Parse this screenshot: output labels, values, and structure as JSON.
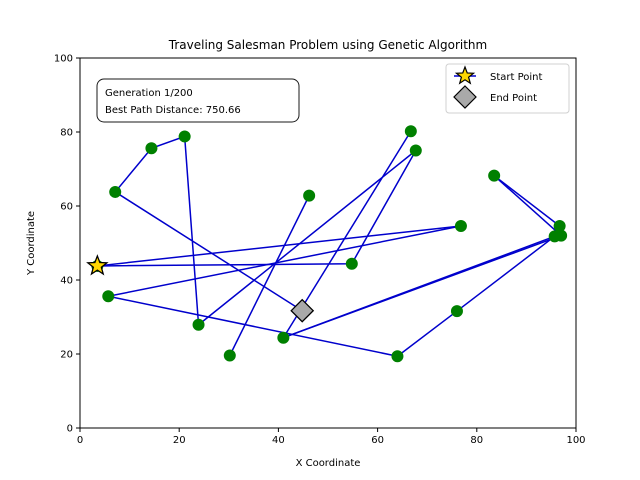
{
  "chart_data": {
    "type": "line",
    "title": "Traveling Salesman Problem using Genetic Algorithm",
    "xlabel": "X Coordinate",
    "ylabel": "Y Coordinate",
    "xlim": [
      0,
      100
    ],
    "ylim": [
      0,
      100
    ],
    "x_ticks": [
      "0",
      "20",
      "40",
      "60",
      "80",
      "100"
    ],
    "y_ticks": [
      "0",
      "20",
      "40",
      "60",
      "80",
      "100"
    ],
    "info_box": {
      "line1": "Generation 1/200",
      "line2": "Best Path Distance: 750.66"
    },
    "legend": {
      "placement": "top-right",
      "start_label": "Start Point",
      "end_label": "End Point"
    },
    "path": [
      [
        3.5,
        43.8
      ],
      [
        54.8,
        44.4
      ],
      [
        67.7,
        75.0
      ],
      [
        23.9,
        27.9
      ],
      [
        21.1,
        78.8
      ],
      [
        14.4,
        75.6
      ],
      [
        7.1,
        63.8
      ],
      [
        44.8,
        31.7
      ]
    ],
    "extra_edges": [
      [
        [
          3.5,
          43.8
        ],
        [
          76.8,
          54.6
        ]
      ],
      [
        [
          76.8,
          54.6
        ],
        [
          5.7,
          35.6
        ]
      ],
      [
        [
          5.7,
          35.6
        ],
        [
          64.0,
          19.4
        ]
      ],
      [
        [
          64.0,
          19.4
        ],
        [
          76.0,
          31.6
        ]
      ],
      [
        [
          76.0,
          31.6
        ],
        [
          95.7,
          51.8
        ]
      ],
      [
        [
          95.7,
          51.8
        ],
        [
          41.0,
          24.4
        ]
      ],
      [
        [
          41.0,
          24.4
        ],
        [
          66.7,
          80.2
        ]
      ],
      [
        [
          41.0,
          24.4
        ],
        [
          97.0,
          52.0
        ]
      ],
      [
        [
          96.7,
          54.6
        ],
        [
          83.5,
          68.2
        ]
      ],
      [
        [
          83.5,
          68.2
        ],
        [
          97.0,
          52.0
        ]
      ],
      [
        [
          46.2,
          62.8
        ],
        [
          30.2,
          19.6
        ]
      ]
    ],
    "cities": [
      [
        3.5,
        43.8
      ],
      [
        5.7,
        35.6
      ],
      [
        7.1,
        63.8
      ],
      [
        14.4,
        75.6
      ],
      [
        21.1,
        78.8
      ],
      [
        23.9,
        27.9
      ],
      [
        30.2,
        19.6
      ],
      [
        41.0,
        24.4
      ],
      [
        46.2,
        62.8
      ],
      [
        54.8,
        44.4
      ],
      [
        64.0,
        19.4
      ],
      [
        66.7,
        80.2
      ],
      [
        67.7,
        75.0
      ],
      [
        76.0,
        31.6
      ],
      [
        76.8,
        54.6
      ],
      [
        83.5,
        68.2
      ],
      [
        95.7,
        51.8
      ],
      [
        96.7,
        54.6
      ],
      [
        97.0,
        52.0
      ]
    ],
    "start_point": [
      3.5,
      43.8
    ],
    "end_point": [
      44.8,
      31.7
    ],
    "colors": {
      "path": "#0000cc",
      "city": "#008000",
      "start_fill": "#ffd700",
      "end_fill": "#a9a9a9"
    }
  }
}
